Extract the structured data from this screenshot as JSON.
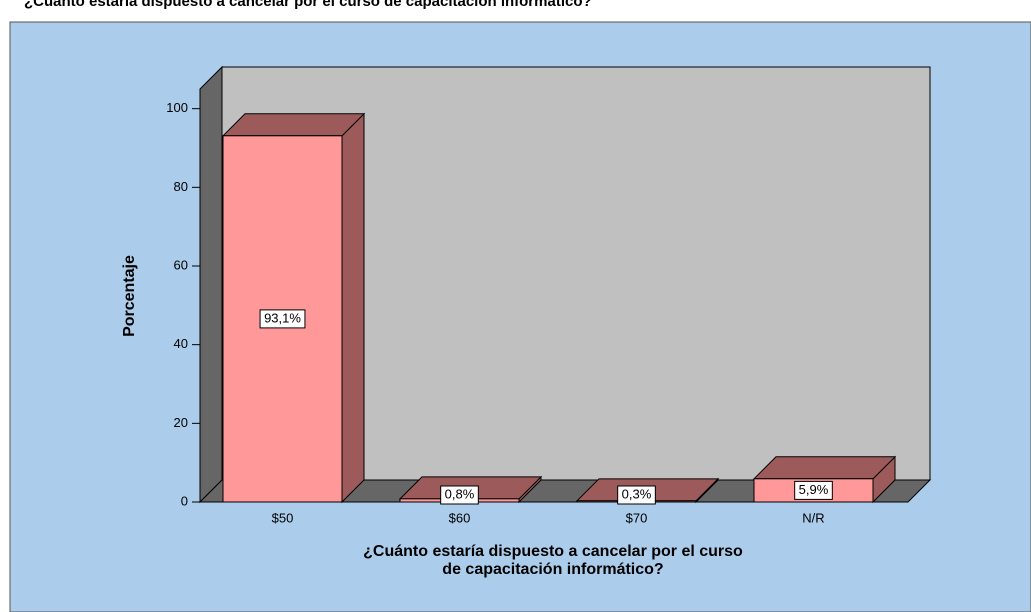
{
  "chart_data": {
    "type": "bar3d",
    "title": "¿Cuánto estaría dispuesto a cancelar por el curso de capacitación informático?",
    "x_label": "¿Cuánto estaría dispuesto a cancelar por el curso de capacitación informático?",
    "y_label": "Porcentaje",
    "categories": [
      "$50",
      "$60",
      "$70",
      "N/R"
    ],
    "values": [
      93.1,
      0.8,
      0.3,
      5.9
    ],
    "value_labels": [
      "93,1%",
      "0,8%",
      "0,3%",
      "5,9%"
    ],
    "color": "#ff9999",
    "ylim": [
      0,
      105
    ],
    "yticks": [
      0,
      20,
      40,
      60,
      80,
      100
    ]
  }
}
